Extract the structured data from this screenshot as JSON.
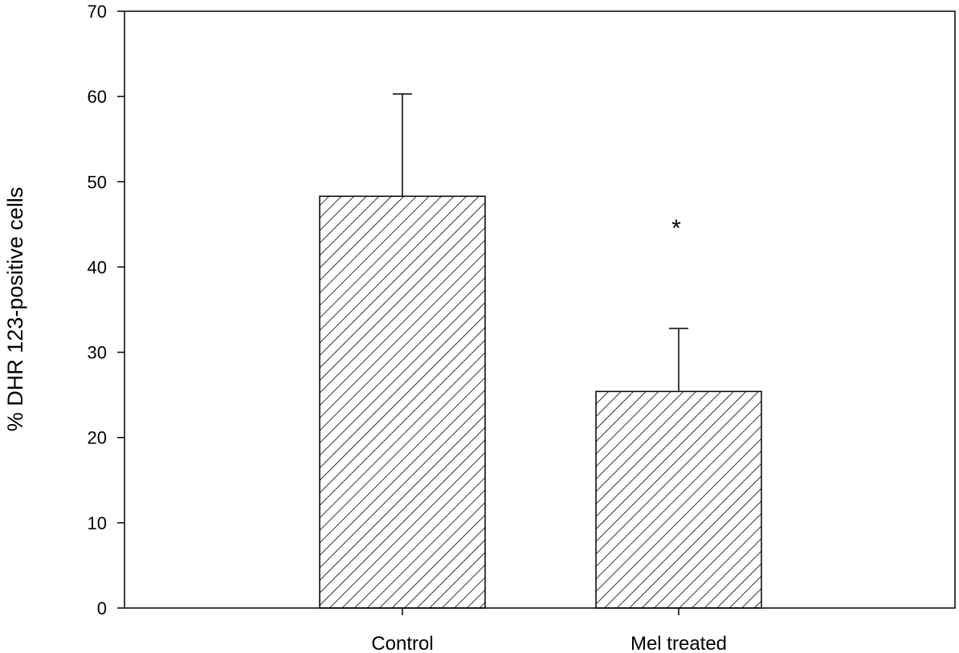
{
  "chart_data": {
    "type": "bar",
    "title": "",
    "xlabel": "",
    "ylabel": "% DHR 123-positive cells",
    "ylim": [
      0,
      70
    ],
    "yticks": [
      0,
      10,
      20,
      30,
      40,
      50,
      60,
      70
    ],
    "categories": [
      "Control",
      "Mel treated"
    ],
    "series": [
      {
        "values": [
          48.3,
          25.4
        ],
        "error_plus": [
          12.0,
          7.4
        ],
        "fill": "diagonal-hatch",
        "color": "#000000"
      }
    ],
    "annotations": [
      {
        "category": "Mel treated",
        "text": "*",
        "y": 45.5
      }
    ],
    "grid": false,
    "legend": "none"
  }
}
